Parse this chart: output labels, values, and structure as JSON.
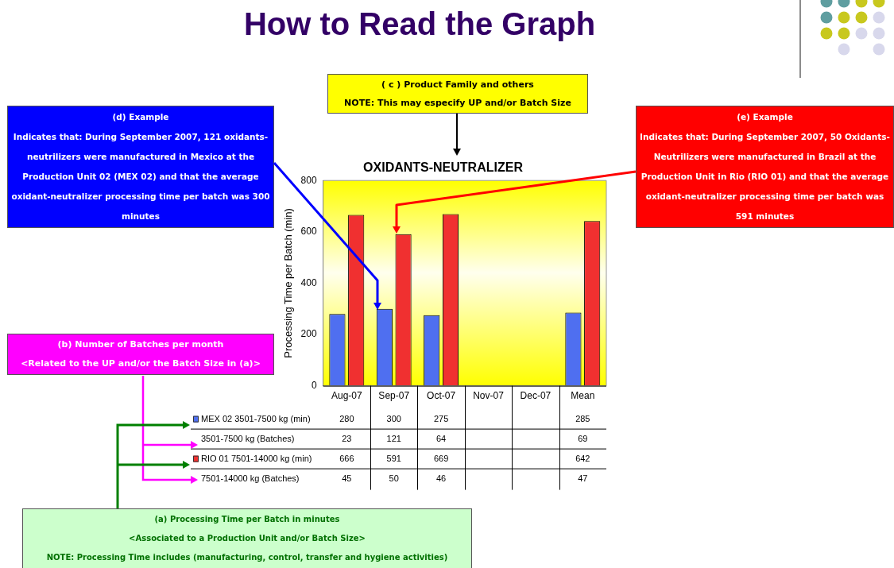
{
  "chart_data": {
    "type": "bar",
    "title": "How to Read the Graph",
    "subtitle": "OXIDANTS-NEUTRALIZER",
    "ylabel": "Processing Time per Batch (min)",
    "categories": [
      "Aug-07",
      "Sep-07",
      "Oct-07",
      "Nov-07",
      "Dec-07",
      "Mean"
    ],
    "series": [
      {
        "name": "MEX 02 3501-7500 kg (min)",
        "color": "#4f6ff0",
        "values": [
          280,
          300,
          275,
          null,
          null,
          285
        ]
      },
      {
        "name": "RIO 01 7501-14000 kg (min)",
        "color": "#f03030",
        "values": [
          666,
          591,
          669,
          null,
          null,
          642
        ]
      }
    ],
    "ylim": [
      0,
      800
    ],
    "yticks": [
      0,
      200,
      400,
      600,
      800
    ],
    "grid": false,
    "legend": "bottom left",
    "data_labels": true,
    "annotations": [
      "( c ) Product Family and others\nNOTE: This may especify UP and/or Batch Size",
      "(d) Example\nIndicates that:  During September 2007, 121 oxidants-neutrilizers were manufactured in Mexico at the Production Unit 02 (MEX 02) and that the average oxidant-neutralizer processing time per batch was 300 minutes",
      "(e) Example\nIndicates that:  During September 2007, 50 Oxidants-Neutrilizers were manufactured in Brazil at the Production Unit in Rio (RIO 01) and that the average oxidant-neutralizer processing time per batch was 591 minutes",
      "(b) Number of Batches per month\n<Related to the UP and/or the Batch Size in (a)>",
      "(a) Processing Time per Batch in minutes\n<Associated to a Production Unit and/or Batch Size>\nNOTE: Processing Time includes (manufacturing, control, transfer and hygiene activities)",
      "3501-7500 kg (Batches)",
      "23",
      "121",
      "64",
      "69",
      "7501-14000 kg (Batches)",
      "45",
      "50",
      "46",
      "47"
    ]
  }
}
